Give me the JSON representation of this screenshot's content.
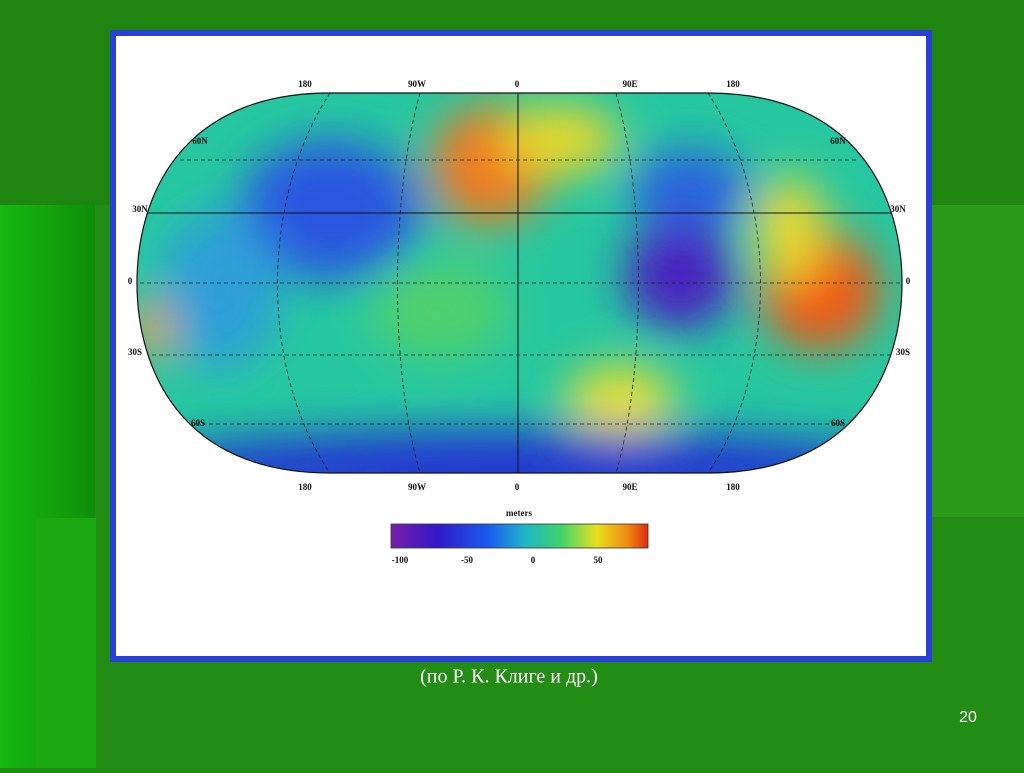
{
  "slide": {
    "map": {
      "top_labels": [
        "180",
        "90W",
        "0",
        "90E",
        "180"
      ],
      "bottom_labels": [
        "180",
        "90W",
        "0",
        "90E",
        "180"
      ],
      "left_labels": [
        "60N",
        "30N",
        "0",
        "30S",
        "60S"
      ],
      "right_labels": [
        "60N",
        "30N",
        "0",
        "30S",
        "60S"
      ],
      "colorbar": {
        "title": "meters",
        "ticks": [
          "-100",
          "-50",
          "0",
          "50"
        ]
      }
    },
    "caption": "(по Р. К. Клиге и др.)",
    "page_number": "20"
  }
}
